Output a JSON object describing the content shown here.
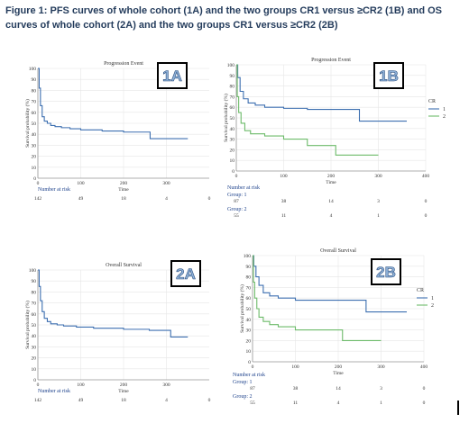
{
  "figure_title": "Figure 1: PFS curves of whole cohort (1A) and the two groups CR1 versus ≥CR2 (1B) and OS curves of whole cohort (2A) and the two groups CR1 versus ≥CR2 (2B)",
  "colors": {
    "series_1": "#3d6fb0",
    "series_2": "#6dbb6a",
    "grid": "#e6e6e6",
    "axis": "#999999"
  },
  "chart_data": [
    {
      "panel": "1A",
      "type": "line",
      "step": true,
      "title": "Progression Event",
      "xlabel": "Time",
      "ylabel": "Survival probability (%)",
      "xlim": [
        0,
        400
      ],
      "ylim": [
        0,
        100
      ],
      "xticks": [
        0,
        100,
        200,
        300
      ],
      "yticks": [
        0,
        10,
        20,
        30,
        40,
        50,
        60,
        70,
        80,
        90,
        100
      ],
      "series": [
        {
          "x": [
            0,
            3,
            6,
            10,
            15,
            22,
            30,
            40,
            55,
            75,
            100,
            150,
            200,
            262,
            350
          ],
          "y": [
            100,
            82,
            66,
            56,
            52,
            50,
            48,
            47,
            46,
            45,
            44,
            43,
            42,
            36,
            36
          ]
        }
      ],
      "risk_table": {
        "header": "Number at risk",
        "groups": [
          {
            "name": "",
            "values": [
              "142",
              "49",
              "18",
              "4",
              "0"
            ]
          }
        ]
      }
    },
    {
      "panel": "1B",
      "type": "line",
      "step": true,
      "title": "Progression Event",
      "xlabel": "Time",
      "ylabel": "Survival probability (%)",
      "xlim": [
        0,
        400
      ],
      "ylim": [
        0,
        100
      ],
      "xticks": [
        0,
        100,
        200,
        300,
        400
      ],
      "yticks": [
        0,
        10,
        20,
        30,
        40,
        50,
        60,
        70,
        80,
        90,
        100
      ],
      "legend_title": "CR",
      "series": [
        {
          "name": "1",
          "x": [
            0,
            3,
            8,
            15,
            25,
            40,
            60,
            100,
            150,
            200,
            260,
            320,
            360
          ],
          "y": [
            100,
            88,
            75,
            68,
            64,
            62,
            60,
            59,
            58,
            58,
            47,
            47,
            47
          ]
        },
        {
          "name": "2",
          "x": [
            0,
            2,
            5,
            10,
            18,
            30,
            60,
            100,
            150,
            210,
            300
          ],
          "y": [
            100,
            70,
            55,
            45,
            38,
            35,
            33,
            30,
            24,
            15,
            15
          ]
        }
      ],
      "risk_table": {
        "header": "Number at risk",
        "groups": [
          {
            "name": "Group: 1",
            "values": [
              "87",
              "38",
              "14",
              "3",
              "0"
            ]
          },
          {
            "name": "Group: 2",
            "values": [
              "55",
              "11",
              "4",
              "1",
              "0"
            ]
          }
        ]
      }
    },
    {
      "panel": "2A",
      "type": "line",
      "step": true,
      "title": "Overall Survival",
      "xlabel": "Time",
      "ylabel": "Survival probability (%)",
      "xlim": [
        0,
        400
      ],
      "ylim": [
        0,
        100
      ],
      "xticks": [
        0,
        100,
        200,
        300
      ],
      "yticks": [
        0,
        10,
        20,
        30,
        40,
        50,
        60,
        70,
        80,
        90,
        100
      ],
      "series": [
        {
          "x": [
            0,
            3,
            6,
            10,
            15,
            22,
            30,
            45,
            60,
            90,
            130,
            200,
            260,
            310,
            350
          ],
          "y": [
            100,
            85,
            72,
            62,
            56,
            53,
            51,
            50,
            49,
            48,
            47,
            46,
            45,
            39,
            39
          ]
        }
      ],
      "risk_table": {
        "header": "Number at risk",
        "groups": [
          {
            "name": "",
            "values": [
              "142",
              "49",
              "18",
              "4",
              "0"
            ]
          }
        ]
      }
    },
    {
      "panel": "2B",
      "type": "line",
      "step": true,
      "title": "Overall Survival",
      "xlabel": "Time",
      "ylabel": "Survival probability (%)",
      "xlim": [
        0,
        400
      ],
      "ylim": [
        0,
        100
      ],
      "xticks": [
        0,
        100,
        200,
        300,
        400
      ],
      "yticks": [
        0,
        10,
        20,
        30,
        40,
        50,
        60,
        70,
        80,
        90,
        100
      ],
      "legend_title": "CR",
      "series": [
        {
          "name": "1",
          "x": [
            0,
            3,
            8,
            15,
            25,
            40,
            60,
            100,
            200,
            265,
            300,
            360
          ],
          "y": [
            100,
            90,
            80,
            72,
            65,
            62,
            60,
            58,
            58,
            47,
            47,
            47
          ]
        },
        {
          "name": "2",
          "x": [
            0,
            2,
            5,
            10,
            15,
            25,
            40,
            60,
            100,
            150,
            210,
            300
          ],
          "y": [
            100,
            75,
            60,
            50,
            42,
            38,
            35,
            33,
            30,
            30,
            20,
            20
          ]
        }
      ],
      "risk_table": {
        "header": "Number at risk",
        "groups": [
          {
            "name": "Group: 1",
            "values": [
              "87",
              "38",
              "14",
              "3",
              "0"
            ]
          },
          {
            "name": "Group: 2",
            "values": [
              "55",
              "11",
              "4",
              "1",
              "0"
            ]
          }
        ]
      }
    }
  ]
}
